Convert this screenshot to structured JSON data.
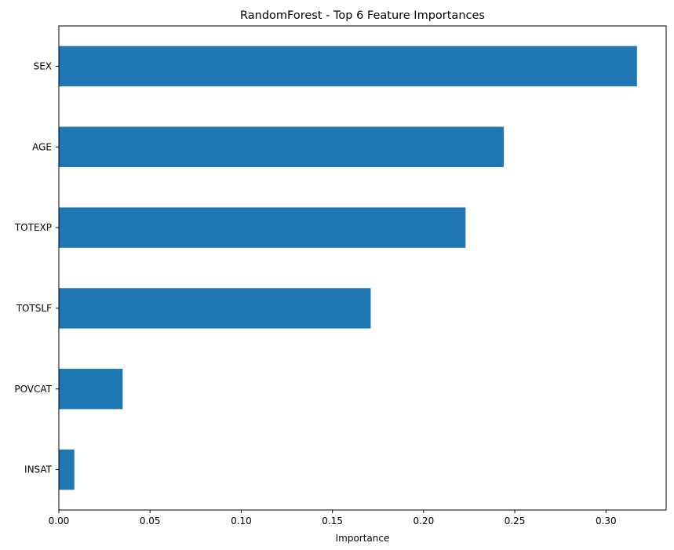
{
  "chart_data": {
    "type": "bar",
    "orientation": "horizontal",
    "title": "RandomForest - Top 6 Feature Importances",
    "xlabel": "Importance",
    "ylabel": "",
    "categories": [
      "SEX",
      "AGE",
      "TOTEXP",
      "TOTSLF",
      "POVCAT",
      "INSAT"
    ],
    "values": [
      0.317,
      0.244,
      0.223,
      0.171,
      0.035,
      0.0085
    ],
    "xlim": [
      0,
      0.333
    ],
    "xticks": [
      0.0,
      0.05,
      0.1,
      0.15,
      0.2,
      0.25,
      0.3
    ],
    "xtick_labels": [
      "0.00",
      "0.05",
      "0.10",
      "0.15",
      "0.20",
      "0.25",
      "0.30"
    ],
    "bar_color": "#1f77b4",
    "grid": false,
    "legend": "none"
  }
}
